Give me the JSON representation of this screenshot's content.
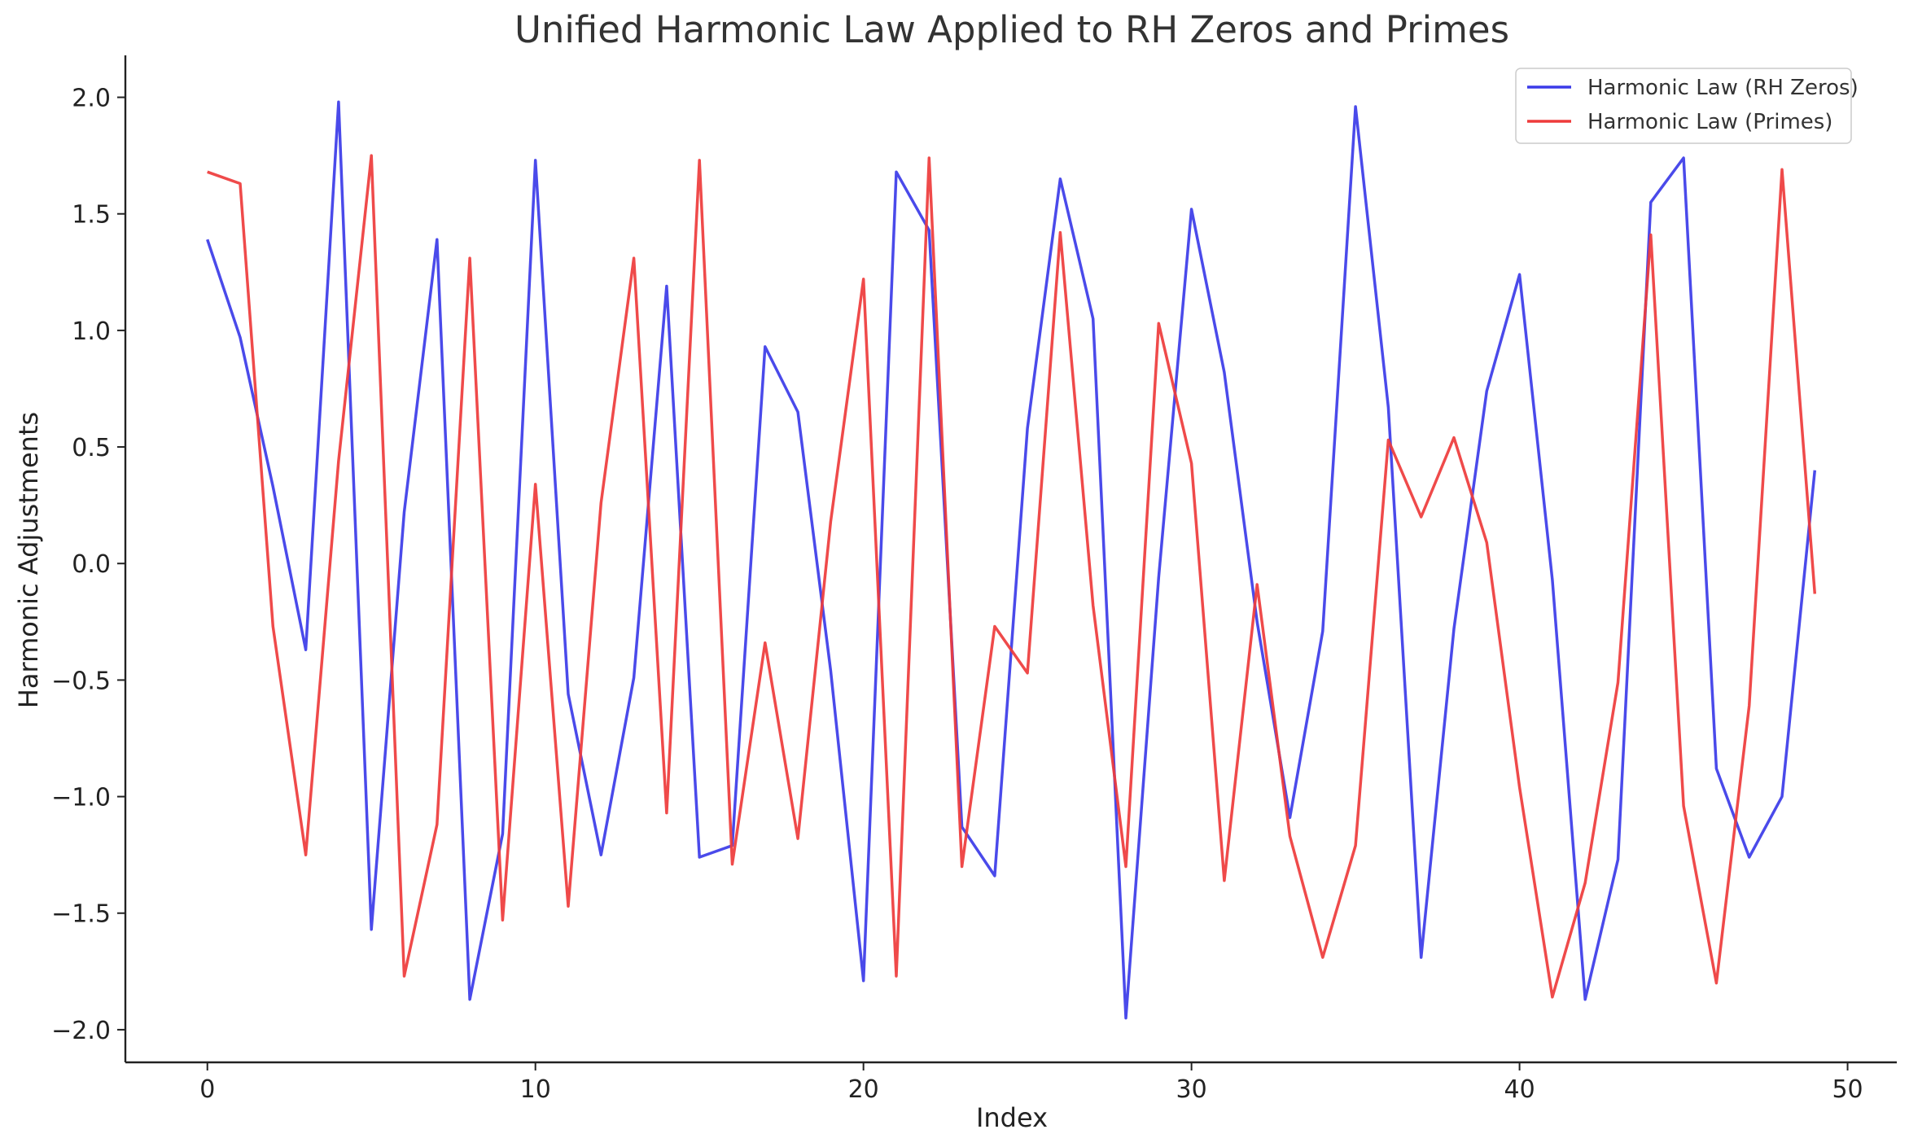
{
  "chart_data": {
    "type": "line",
    "title": "Unified Harmonic Law Applied to RH Zeros and Primes",
    "xlabel": "Index",
    "ylabel": "Harmonic Adjustments",
    "xlim": [
      -2.5,
      51.5
    ],
    "ylim": [
      -2.14,
      2.18
    ],
    "x_ticks": [
      0,
      10,
      20,
      30,
      40,
      50
    ],
    "x_tick_labels": [
      "0",
      "10",
      "20",
      "30",
      "40",
      "50"
    ],
    "y_ticks": [
      2.0,
      1.5,
      1.0,
      0.5,
      0.0,
      -0.5,
      -1.0,
      -1.5,
      -2.0
    ],
    "y_tick_labels": [
      "2.0",
      "1.5",
      "1.0",
      "0.5",
      "0.0",
      "−0.5",
      "−1.0",
      "−1.5",
      "−2.0"
    ],
    "grid": false,
    "legend_position": "top-right",
    "x": [
      0,
      1,
      2,
      3,
      4,
      5,
      6,
      7,
      8,
      9,
      10,
      11,
      12,
      13,
      14,
      15,
      16,
      17,
      18,
      19,
      20,
      21,
      22,
      23,
      24,
      25,
      26,
      27,
      28,
      29,
      30,
      31,
      32,
      33,
      34,
      35,
      36,
      37,
      38,
      39,
      40,
      41,
      42,
      43,
      44,
      45,
      46,
      47,
      48,
      49
    ],
    "series": [
      {
        "name": "Harmonic Law (RH Zeros)",
        "color": "#3b3be8",
        "values": [
          1.39,
          0.97,
          0.33,
          -0.37,
          1.98,
          -1.57,
          0.22,
          1.39,
          -1.87,
          -1.16,
          1.73,
          -0.56,
          -1.25,
          -0.49,
          1.19,
          -1.26,
          -1.21,
          0.93,
          0.65,
          -0.46,
          -1.79,
          1.68,
          1.43,
          -1.13,
          -1.34,
          0.58,
          1.65,
          1.05,
          -1.95,
          -0.06,
          1.52,
          0.82,
          -0.25,
          -1.09,
          -0.29,
          1.96,
          0.67,
          -1.69,
          -0.28,
          0.74,
          1.24,
          -0.07,
          -1.87,
          -1.27,
          1.55,
          1.74,
          -0.88,
          -1.26,
          -1.0,
          0.4
        ]
      },
      {
        "name": "Harmonic Law (Primes)",
        "color": "#ee3b3b",
        "values": [
          1.68,
          1.63,
          -0.27,
          -1.25,
          0.44,
          1.75,
          -1.77,
          -1.12,
          1.31,
          -1.53,
          0.34,
          -1.47,
          0.26,
          1.31,
          -1.07,
          1.73,
          -1.29,
          -0.34,
          -1.18,
          0.18,
          1.22,
          -1.77,
          1.74,
          -1.3,
          -0.27,
          -0.47,
          1.42,
          -0.18,
          -1.3,
          1.03,
          0.43,
          -1.36,
          -0.09,
          -1.17,
          -1.69,
          -1.21,
          0.53,
          0.2,
          0.54,
          0.09,
          -0.96,
          -1.86,
          -1.37,
          -0.51,
          1.41,
          -1.04,
          -1.8,
          -0.61,
          1.69,
          -0.13
        ]
      }
    ]
  }
}
